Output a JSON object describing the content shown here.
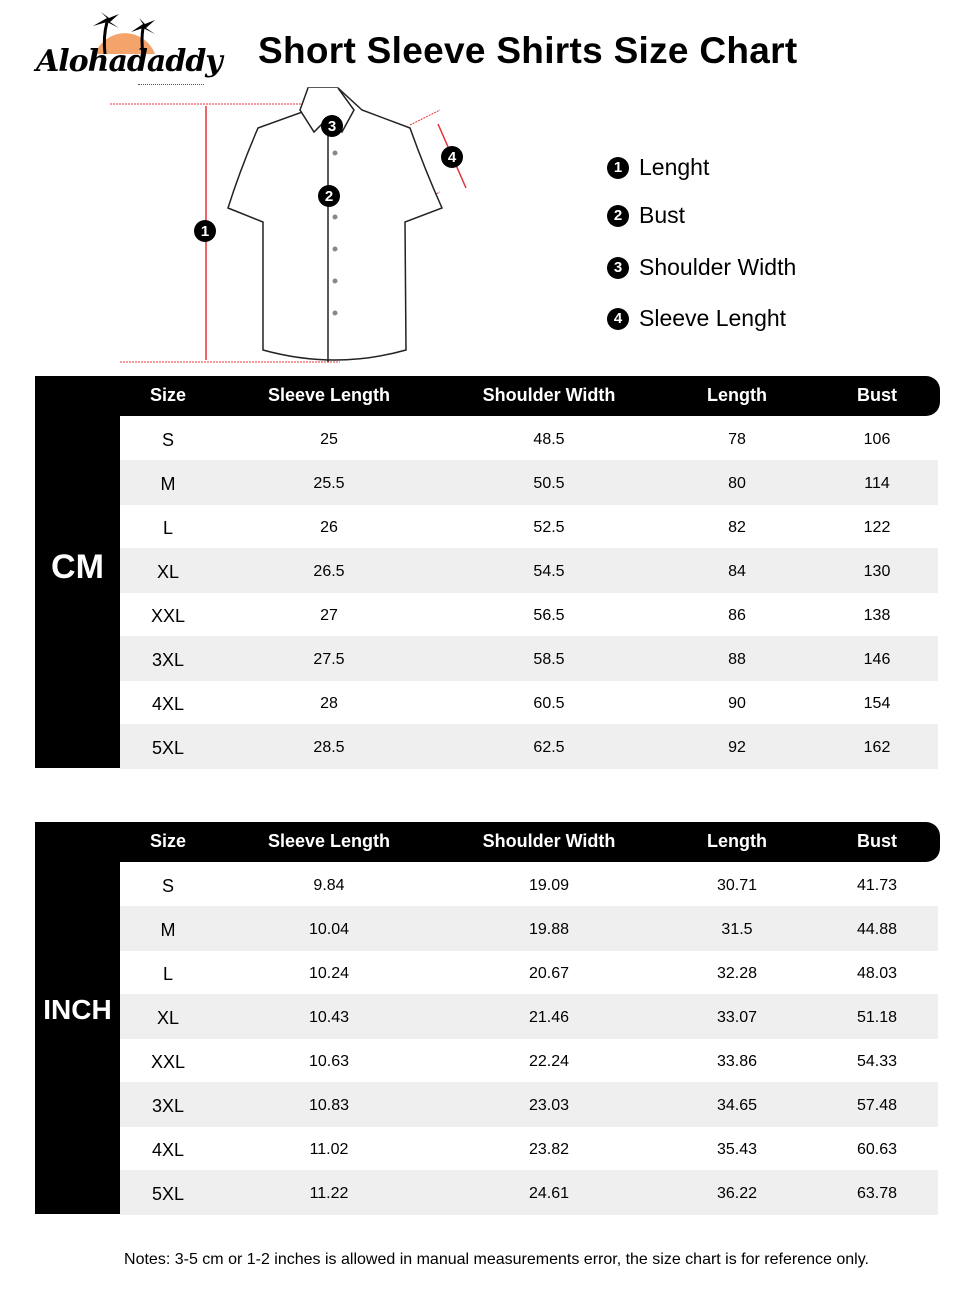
{
  "title": "Short Sleeve Shirts Size Chart",
  "logo": {
    "text": "Alohadaddy",
    "accent_color": "#f4a46a"
  },
  "legend": [
    {
      "num": "1",
      "label": "Lenght"
    },
    {
      "num": "2",
      "label": "Bust"
    },
    {
      "num": "3",
      "label": "Shoulder Width"
    },
    {
      "num": "4",
      "label": "Sleeve Lenght"
    }
  ],
  "diagram_markers": [
    "1",
    "2",
    "3",
    "4"
  ],
  "columns": [
    "Size",
    "Sleeve Length",
    "Shoulder Width",
    "Length",
    "Bust"
  ],
  "tables": [
    {
      "unit": "CM",
      "rows": [
        [
          "S",
          "25",
          "48.5",
          "78",
          "106"
        ],
        [
          "M",
          "25.5",
          "50.5",
          "80",
          "114"
        ],
        [
          "L",
          "26",
          "52.5",
          "82",
          "122"
        ],
        [
          "XL",
          "26.5",
          "54.5",
          "84",
          "130"
        ],
        [
          "XXL",
          "27",
          "56.5",
          "86",
          "138"
        ],
        [
          "3XL",
          "27.5",
          "58.5",
          "88",
          "146"
        ],
        [
          "4XL",
          "28",
          "60.5",
          "90",
          "154"
        ],
        [
          "5XL",
          "28.5",
          "62.5",
          "92",
          "162"
        ]
      ]
    },
    {
      "unit": "INCH",
      "rows": [
        [
          "S",
          "9.84",
          "19.09",
          "30.71",
          "41.73"
        ],
        [
          "M",
          "10.04",
          "19.88",
          "31.5",
          "44.88"
        ],
        [
          "L",
          "10.24",
          "20.67",
          "32.28",
          "48.03"
        ],
        [
          "XL",
          "10.43",
          "21.46",
          "33.07",
          "51.18"
        ],
        [
          "XXL",
          "10.63",
          "22.24",
          "33.86",
          "54.33"
        ],
        [
          "3XL",
          "10.83",
          "23.03",
          "34.65",
          "57.48"
        ],
        [
          "4XL",
          "11.02",
          "23.82",
          "35.43",
          "60.63"
        ],
        [
          "5XL",
          "11.22",
          "24.61",
          "36.22",
          "63.78"
        ]
      ]
    }
  ],
  "notes": "Notes: 3-5 cm or 1-2 inches is allowed in manual measurements error, the size chart is for reference only.",
  "colors": {
    "measure_line": "#e8333a",
    "row_alt": "#efefef",
    "header": "#000000"
  }
}
